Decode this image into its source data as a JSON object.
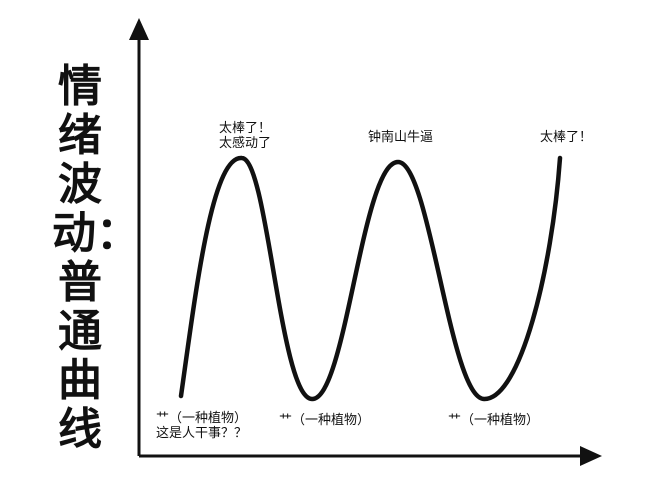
{
  "chart_data": {
    "type": "line",
    "title": "",
    "ylabel": "情绪波动：普通曲线",
    "xlabel": "",
    "grid": false,
    "legend": "none",
    "line_color": "#111111",
    "annotations": [
      {
        "id": "low-1",
        "lines": [
          "艹（一种植物）",
          "这是人干事？？"
        ]
      },
      {
        "id": "peak-1",
        "lines": [
          "太棒了！",
          "太感动了"
        ]
      },
      {
        "id": "low-2",
        "lines": [
          "艹（一种植物）"
        ]
      },
      {
        "id": "peak-2",
        "lines": [
          "钟南山牛逼"
        ]
      },
      {
        "id": "low-3",
        "lines": [
          "艹（一种植物）"
        ]
      },
      {
        "id": "peak-3",
        "lines": [
          "太棒了！"
        ]
      }
    ]
  }
}
